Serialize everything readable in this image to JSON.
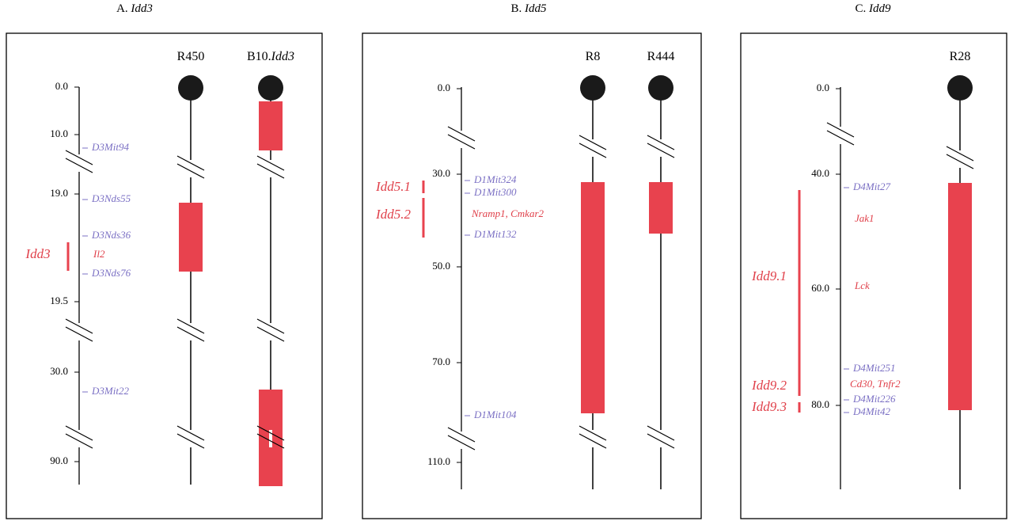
{
  "panels": [
    {
      "title": {
        "letter": "A.",
        "locus": "Idd3"
      },
      "strains": [
        {
          "name": "R450"
        },
        {
          "name": "B10.",
          "locus": "Idd3"
        }
      ],
      "scale": [
        "0.0",
        "10.0",
        "19.0",
        "19.5",
        "30.0",
        "90.0"
      ],
      "markers": [
        "D3Mit94",
        "D3Nds55",
        "D3Nds36",
        "D3Nds76",
        "D3Mit22"
      ],
      "genes": [
        "Il2"
      ],
      "qtls": [
        "Idd3"
      ]
    },
    {
      "title": {
        "letter": "B.",
        "locus": "Idd5"
      },
      "strains": [
        {
          "name": "R8"
        },
        {
          "name": "R444"
        }
      ],
      "scale": [
        "0.0",
        "30.0",
        "50.0",
        "70.0",
        "110.0"
      ],
      "markers": [
        "D1Mit324",
        "D1Mit300",
        "D1Mit132",
        "D1Mit104"
      ],
      "genes": [
        "Nramp1, Cmkar2"
      ],
      "qtls": [
        "Idd5.1",
        "Idd5.2"
      ]
    },
    {
      "title": {
        "letter": "C.",
        "locus": "Idd9"
      },
      "strains": [
        {
          "name": "R28"
        }
      ],
      "scale": [
        "0.0",
        "40.0",
        "60.0",
        "80.0"
      ],
      "markers": [
        "D4Mit27",
        "D4Mit251",
        "D4Mit226",
        "D4Mit42"
      ],
      "genes": [
        "Jak1",
        "Lck",
        "Cd30, Tnfr2"
      ],
      "qtls": [
        "Idd9.1",
        "Idd9.2",
        "Idd9.3"
      ]
    }
  ]
}
